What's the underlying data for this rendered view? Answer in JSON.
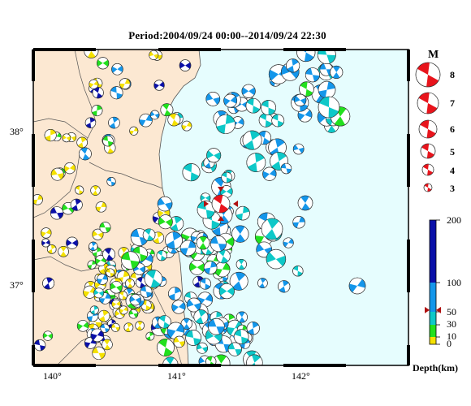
{
  "title": "Period:2004/09/24 00:00--2014/09/24 22:30",
  "axes": {
    "x_labels": [
      "140°",
      "141°",
      "142°"
    ],
    "y_labels": [
      "38°",
      "37°"
    ]
  },
  "magnitude_legend": {
    "title": "M",
    "levels": [
      "8",
      "7",
      "6",
      "5",
      "4",
      "3"
    ],
    "color": "#e8141c"
  },
  "depth_legend": {
    "title": "Depth(km)",
    "ticks": [
      "200",
      "100",
      "50",
      "30",
      "10",
      "0"
    ],
    "bands": [
      {
        "from": 0,
        "to": 10,
        "color": "#f5e100"
      },
      {
        "from": 10,
        "to": 30,
        "color": "#22e01e"
      },
      {
        "from": 30,
        "to": 50,
        "color": "#0ec8c8"
      },
      {
        "from": 50,
        "to": 100,
        "color": "#1496ea"
      },
      {
        "from": 100,
        "to": 200,
        "color": "#0a10a8"
      }
    ],
    "marker_depth": "53"
  },
  "colors": {
    "land": "#fce8d2",
    "sea": "#e6fdfe",
    "frame": "#000000",
    "mainshock": "#e8141c"
  }
}
